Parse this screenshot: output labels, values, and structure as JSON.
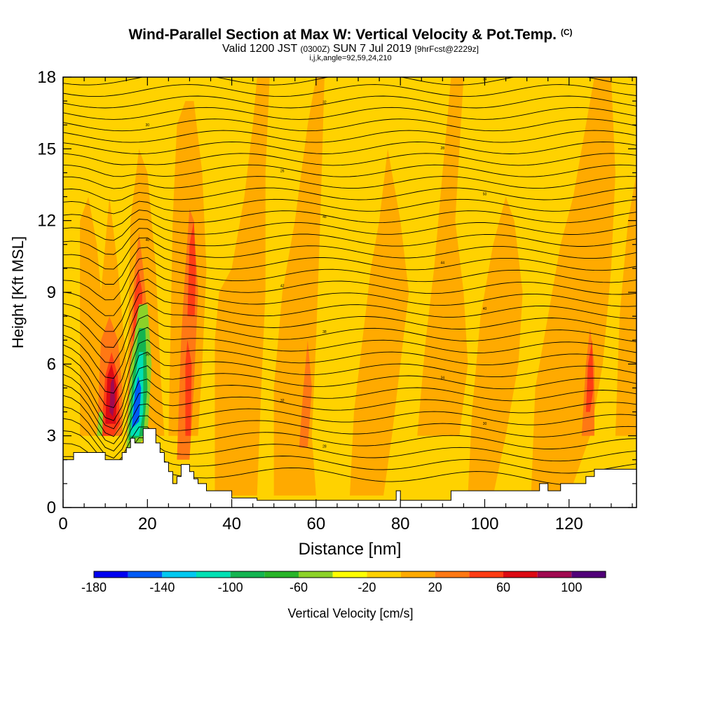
{
  "header": {
    "title": "Wind-Parallel Section at Max W: Vertical Velocity & Pot.Temp.",
    "copyright": "(C)",
    "subtitle_main_a": "Valid 1200 JST",
    "subtitle_zulu": "(0300Z)",
    "subtitle_main_b": "SUN 7 Jul 2019",
    "subtitle_fcst": "[9hrFcst@2229z]",
    "subtitle_indices": "i,j,k,angle=92,59,24,210"
  },
  "chart_data": {
    "type": "heatmap",
    "xlabel": "Distance [nm]",
    "ylabel": "Height [Kft MSL]",
    "xlim": [
      0,
      136
    ],
    "ylim": [
      0,
      18
    ],
    "x_ticks": [
      0,
      20,
      40,
      60,
      80,
      100,
      120
    ],
    "y_ticks": [
      0,
      3,
      6,
      9,
      12,
      15,
      18
    ],
    "colorbar": {
      "label": "Vertical Velocity [cm/s]",
      "boundaries": [
        -180,
        -160,
        -140,
        -120,
        -100,
        -80,
        -60,
        -40,
        -20,
        0,
        20,
        40,
        60,
        80,
        100,
        120
      ],
      "tick_labels": [
        "-180",
        "-140",
        "-100",
        "-60",
        "-20",
        "20",
        "60",
        "100"
      ],
      "colors": [
        "#0000f0",
        "#005af5",
        "#00c8f0",
        "#00e0b4",
        "#14b450",
        "#28b428",
        "#8cd228",
        "#ffff00",
        "#ffd200",
        "#ffaa00",
        "#ff7814",
        "#ff3c14",
        "#dc0a14",
        "#a00a50",
        "#500078"
      ]
    },
    "background_value": -10,
    "features": [
      {
        "name": "strong updraft core",
        "x": 12,
        "y": 4.5,
        "value": 85
      },
      {
        "name": "downdraft core",
        "x": 17,
        "y": 4.0,
        "value": -150
      },
      {
        "name": "updraft",
        "x": 18,
        "y": 8.5,
        "value": 50
      },
      {
        "name": "updraft",
        "x": 30,
        "y": 9.5,
        "value": 55
      },
      {
        "name": "updraft",
        "x": 29.5,
        "y": 5.5,
        "value": 45
      },
      {
        "name": "updraft",
        "x": 125,
        "y": 7,
        "value": 40
      }
    ],
    "isentrope_labels": [
      "26",
      "28",
      "30",
      "32",
      "34",
      "36",
      "38",
      "40",
      "42",
      "44",
      "46",
      "48",
      "50"
    ]
  }
}
